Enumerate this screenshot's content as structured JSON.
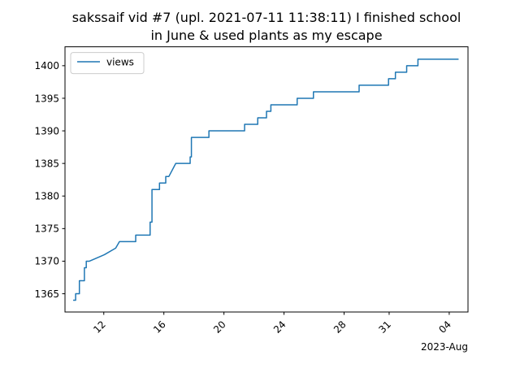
{
  "chart_data": {
    "type": "line",
    "title_lines": [
      "sakssaif vid #7 (upl. 2021-07-11 11:38:11) I finished school",
      "in June & used plants as my escape"
    ],
    "xlabel": "",
    "ylabel": "",
    "x_axis_offset_label": "2023-Aug",
    "x_tick_labels": [
      "12",
      "16",
      "20",
      "24",
      "28",
      "31",
      "04"
    ],
    "x_tick_dates": [
      "2023-07-12",
      "2023-07-16",
      "2023-07-20",
      "2023-07-24",
      "2023-07-28",
      "2023-07-31",
      "2023-08-04"
    ],
    "xlim": [
      "2023-07-09 10:00",
      "2023-08-05 06:00"
    ],
    "y_ticks": [
      1365,
      1370,
      1375,
      1380,
      1385,
      1390,
      1395,
      1400
    ],
    "ylim": [
      1362.2,
      1402.9
    ],
    "grid": false,
    "legend_position": "upper left",
    "series": [
      {
        "name": "views",
        "color": "#1f77b4",
        "points": [
          [
            "2023-07-10 00:00",
            1364
          ],
          [
            "2023-07-10 03:00",
            1364
          ],
          [
            "2023-07-10 03:00",
            1365
          ],
          [
            "2023-07-10 09:00",
            1365
          ],
          [
            "2023-07-10 09:00",
            1367
          ],
          [
            "2023-07-10 17:00",
            1367
          ],
          [
            "2023-07-10 17:00",
            1369
          ],
          [
            "2023-07-10 20:00",
            1369
          ],
          [
            "2023-07-10 20:00",
            1370
          ],
          [
            "2023-07-11 01:00",
            1370
          ],
          [
            "2023-07-12 01:00",
            1371
          ],
          [
            "2023-07-12 19:00",
            1372
          ],
          [
            "2023-07-13 01:00",
            1373
          ],
          [
            "2023-07-14 03:00",
            1373
          ],
          [
            "2023-07-14 03:00",
            1374
          ],
          [
            "2023-07-15 02:00",
            1374
          ],
          [
            "2023-07-15 02:00",
            1376
          ],
          [
            "2023-07-15 05:00",
            1376
          ],
          [
            "2023-07-15 05:00",
            1381
          ],
          [
            "2023-07-15 17:00",
            1381
          ],
          [
            "2023-07-15 17:00",
            1382
          ],
          [
            "2023-07-16 03:00",
            1382
          ],
          [
            "2023-07-16 03:00",
            1383
          ],
          [
            "2023-07-16 08:00",
            1383
          ],
          [
            "2023-07-16 19:00",
            1385
          ],
          [
            "2023-07-17 18:00",
            1385
          ],
          [
            "2023-07-17 18:00",
            1386
          ],
          [
            "2023-07-17 20:00",
            1386
          ],
          [
            "2023-07-17 20:00",
            1389
          ],
          [
            "2023-07-19 00:00",
            1389
          ],
          [
            "2023-07-19 00:00",
            1390
          ],
          [
            "2023-07-21 09:00",
            1390
          ],
          [
            "2023-07-21 09:00",
            1391
          ],
          [
            "2023-07-22 06:00",
            1391
          ],
          [
            "2023-07-22 06:00",
            1392
          ],
          [
            "2023-07-22 20:00",
            1392
          ],
          [
            "2023-07-22 20:00",
            1393
          ],
          [
            "2023-07-23 03:00",
            1393
          ],
          [
            "2023-07-23 03:00",
            1394
          ],
          [
            "2023-07-24 21:00",
            1394
          ],
          [
            "2023-07-24 21:00",
            1395
          ],
          [
            "2023-07-25 23:00",
            1395
          ],
          [
            "2023-07-25 23:00",
            1396
          ],
          [
            "2023-07-29 00:00",
            1396
          ],
          [
            "2023-07-29 00:00",
            1397
          ],
          [
            "2023-07-30 23:00",
            1397
          ],
          [
            "2023-07-30 23:00",
            1398
          ],
          [
            "2023-07-31 10:00",
            1398
          ],
          [
            "2023-07-31 10:00",
            1399
          ],
          [
            "2023-08-01 04:00",
            1399
          ],
          [
            "2023-08-01 04:00",
            1400
          ],
          [
            "2023-08-01 22:00",
            1400
          ],
          [
            "2023-08-01 22:00",
            1401
          ],
          [
            "2023-08-04 14:00",
            1401
          ]
        ]
      }
    ]
  }
}
